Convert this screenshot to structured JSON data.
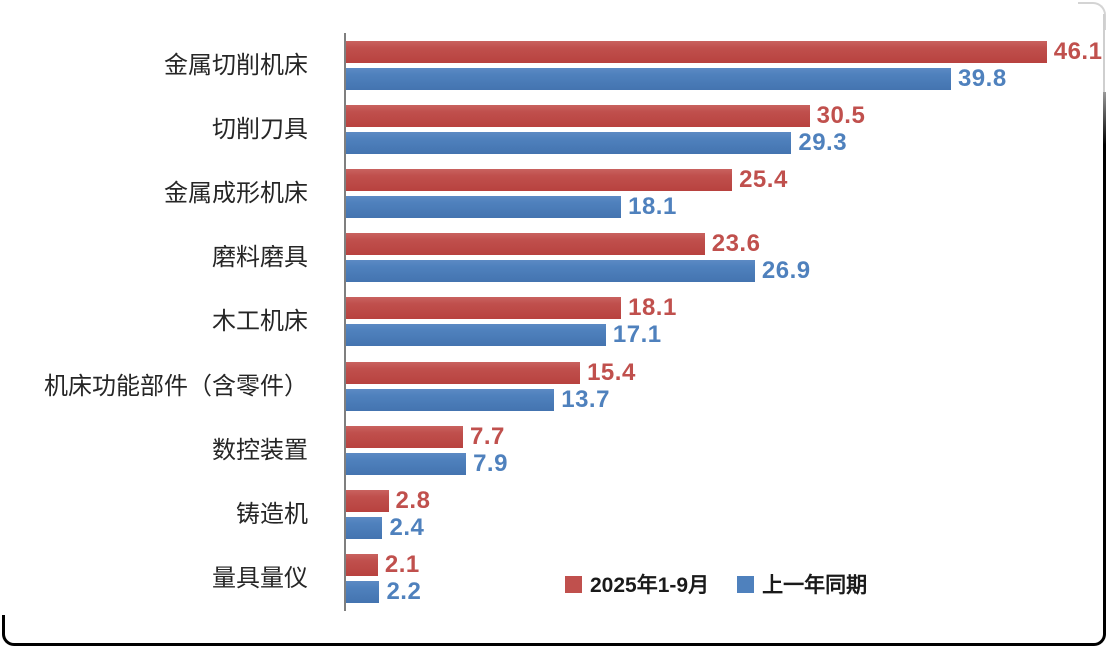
{
  "chart_data": {
    "type": "bar",
    "orientation": "horizontal",
    "title": "",
    "categories": [
      "金属切削机床",
      "切削刀具",
      "金属成形机床",
      "磨料磨具",
      "木工机床",
      "机床功能部件（含零件）",
      "数控装置",
      "铸造机",
      "量具量仪"
    ],
    "series": [
      {
        "name": "2025年1-9月",
        "color": "#C0504D",
        "values": [
          46.1,
          30.5,
          25.4,
          23.6,
          18.1,
          15.4,
          7.7,
          2.8,
          2.1
        ]
      },
      {
        "name": "上一年同期",
        "color": "#4F81BD",
        "values": [
          39.8,
          29.3,
          18.1,
          26.9,
          17.1,
          13.7,
          7.9,
          2.4,
          2.2
        ]
      }
    ],
    "xlim": [
      0,
      48
    ],
    "grid": false,
    "axis_line_color": "#7f7f7f",
    "legend_position": "bottom-center",
    "value_labels": true,
    "value_label_decimals": 1
  }
}
